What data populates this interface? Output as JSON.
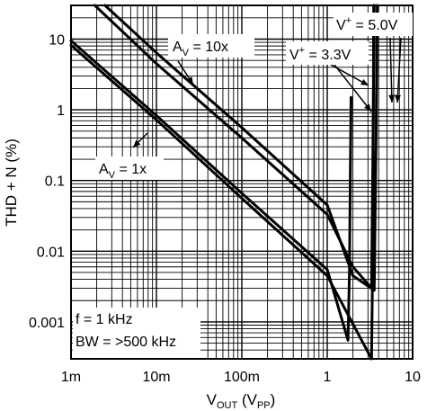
{
  "chart_data": {
    "type": "line",
    "x_scale": "log",
    "y_scale": "log",
    "xlim": [
      0.001,
      10
    ],
    "ylim": [
      0.0003,
      30
    ],
    "grid": true,
    "x_ticks": [
      {
        "value": 0.001,
        "label": "1m"
      },
      {
        "value": 0.01,
        "label": "10m"
      },
      {
        "value": 0.1,
        "label": "100m"
      },
      {
        "value": 1,
        "label": "1"
      },
      {
        "value": 10,
        "label": "10"
      }
    ],
    "y_ticks": [
      {
        "value": 10,
        "label": "10"
      },
      {
        "value": 1,
        "label": "1"
      },
      {
        "value": 0.1,
        "label": "0.1"
      },
      {
        "value": 0.01,
        "label": "0.01"
      },
      {
        "value": 0.001,
        "label": "0.001"
      }
    ],
    "xlabel": {
      "main": "V",
      "sub": "OUT",
      "paren_open": " (V",
      "paren_sub": "PP",
      "paren_close": ")"
    },
    "ylabel": "THD + N (%)",
    "series": [
      {
        "color": "#000000",
        "x": [
          0.0019,
          0.01,
          0.1,
          1.0,
          2.0,
          3.3,
          3.45,
          3.55
        ],
        "y": [
          30,
          4.5,
          0.4,
          0.033,
          0.006,
          0.003,
          0.6,
          30
        ]
      },
      {
        "color": "#000000",
        "x": [
          0.0025,
          0.01,
          0.1,
          1.0,
          2.0,
          3.55,
          3.75,
          3.85
        ],
        "y": [
          30,
          6.4,
          0.56,
          0.045,
          0.0045,
          0.0028,
          0.6,
          30
        ]
      },
      {
        "color": "#000000",
        "x": [
          0.001,
          0.01,
          0.1,
          1.0,
          1.75,
          1.82,
          1.9
        ],
        "y": [
          9.5,
          0.83,
          0.066,
          0.0055,
          0.00055,
          0.005,
          1.5
        ]
      },
      {
        "color": "#000000",
        "x": [
          0.001,
          0.01,
          0.1,
          1.0,
          3.3,
          3.42,
          3.5
        ],
        "y": [
          8.2,
          0.72,
          0.056,
          0.0045,
          0.0003,
          0.01,
          30
        ]
      }
    ],
    "annotations": {
      "av10": {
        "main": "A",
        "sub": "V",
        "rest": " = 10x"
      },
      "av1": {
        "main": "A",
        "sub": "V",
        "rest": " = 1x"
      },
      "v33": {
        "main": "V",
        "sup": "+",
        "rest": " = 3.3V"
      },
      "v50": {
        "main": "V",
        "sup": "+",
        "rest": " = 5.0V"
      },
      "freq": "f = 1 kHz",
      "bw": "BW = >500 kHz"
    }
  }
}
